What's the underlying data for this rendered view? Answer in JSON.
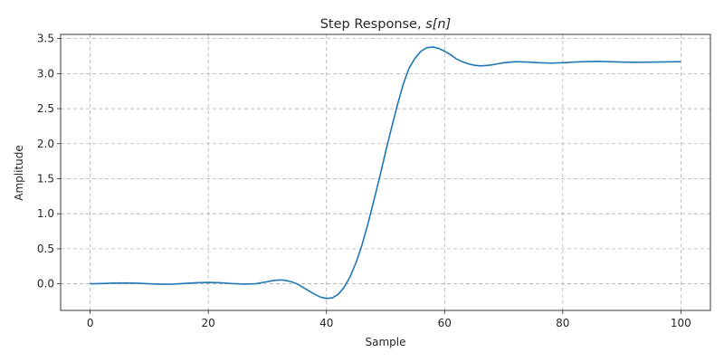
{
  "chart_data": {
    "type": "line",
    "title_main": "Step Response, ",
    "title_math": "s[n]",
    "xlabel": "Sample",
    "ylabel": "Amplitude",
    "xlim": [
      -5,
      105
    ],
    "ylim": [
      -0.38,
      3.56
    ],
    "xticks": [
      0,
      20,
      40,
      60,
      80,
      100
    ],
    "yticks": [
      0.0,
      0.5,
      1.0,
      1.5,
      2.0,
      2.5,
      3.0,
      3.5
    ],
    "grid": true,
    "line_color": "#1f77b4",
    "series": [
      {
        "x": [
          0,
          2,
          4,
          6,
          8,
          10,
          12,
          14,
          16,
          18,
          20,
          22,
          24,
          26,
          28,
          30,
          31,
          32,
          33,
          34,
          35,
          36,
          37,
          38,
          39,
          40,
          41,
          42,
          43,
          44,
          45,
          46,
          47,
          48,
          49,
          50,
          51,
          52,
          53,
          54,
          55,
          56,
          57,
          58,
          59,
          60,
          61,
          62,
          63,
          64,
          65,
          66,
          67,
          68,
          69,
          70,
          72,
          74,
          76,
          78,
          80,
          82,
          84,
          86,
          88,
          90,
          92,
          94,
          96,
          98,
          100
        ],
        "y": [
          0.0,
          0.004,
          0.01,
          0.012,
          0.008,
          0.0,
          -0.006,
          -0.004,
          0.005,
          0.015,
          0.02,
          0.015,
          0.003,
          -0.005,
          0.0,
          0.03,
          0.045,
          0.055,
          0.05,
          0.03,
          0.0,
          -0.05,
          -0.1,
          -0.15,
          -0.19,
          -0.21,
          -0.2,
          -0.15,
          -0.05,
          0.1,
          0.3,
          0.55,
          0.85,
          1.18,
          1.52,
          1.88,
          2.22,
          2.55,
          2.85,
          3.08,
          3.22,
          3.32,
          3.37,
          3.38,
          3.36,
          3.32,
          3.27,
          3.21,
          3.17,
          3.14,
          3.12,
          3.11,
          3.115,
          3.125,
          3.14,
          3.155,
          3.17,
          3.165,
          3.155,
          3.15,
          3.155,
          3.165,
          3.172,
          3.175,
          3.17,
          3.165,
          3.162,
          3.163,
          3.165,
          3.168,
          3.17
        ]
      }
    ]
  }
}
